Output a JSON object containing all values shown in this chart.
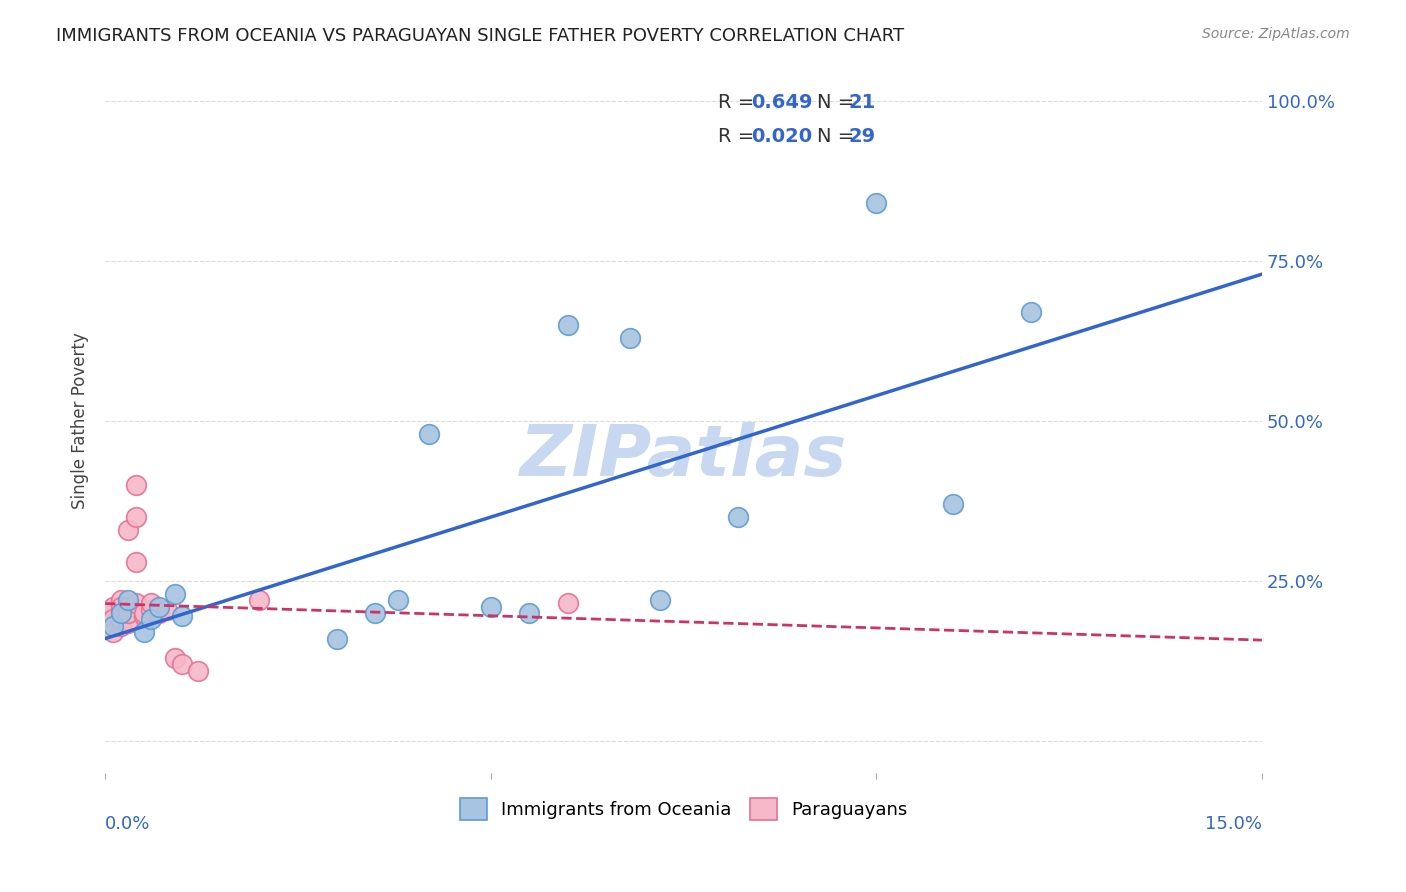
{
  "title": "IMMIGRANTS FROM OCEANIA VS PARAGUAYAN SINGLE FATHER POVERTY CORRELATION CHART",
  "source": "Source: ZipAtlas.com",
  "ylabel": "Single Father Poverty",
  "y_ticks": [
    0.0,
    0.25,
    0.5,
    0.75,
    1.0
  ],
  "y_tick_labels": [
    "",
    "25.0%",
    "50.0%",
    "75.0%",
    "100.0%"
  ],
  "x_range": [
    0.0,
    0.15
  ],
  "y_range": [
    -0.05,
    1.05
  ],
  "legend_blue_r": "0.649",
  "legend_blue_n": "21",
  "legend_pink_r": "0.020",
  "legend_pink_n": "29",
  "legend_label_blue": "Immigrants from Oceania",
  "legend_label_pink": "Paraguayans",
  "blue_scatter_x": [
    0.001,
    0.002,
    0.003,
    0.005,
    0.006,
    0.007,
    0.009,
    0.01,
    0.03,
    0.035,
    0.038,
    0.042,
    0.05,
    0.055,
    0.06,
    0.068,
    0.072,
    0.082,
    0.1,
    0.11,
    0.12
  ],
  "blue_scatter_y": [
    0.18,
    0.2,
    0.22,
    0.17,
    0.19,
    0.21,
    0.23,
    0.195,
    0.16,
    0.2,
    0.22,
    0.48,
    0.21,
    0.2,
    0.65,
    0.63,
    0.22,
    0.35,
    0.84,
    0.37,
    0.67
  ],
  "pink_scatter_x": [
    0.0,
    0.001,
    0.001,
    0.001,
    0.002,
    0.002,
    0.002,
    0.002,
    0.002,
    0.003,
    0.003,
    0.003,
    0.003,
    0.003,
    0.004,
    0.004,
    0.004,
    0.004,
    0.005,
    0.005,
    0.006,
    0.006,
    0.007,
    0.008,
    0.009,
    0.01,
    0.012,
    0.02,
    0.06
  ],
  "pink_scatter_y": [
    0.2,
    0.21,
    0.19,
    0.17,
    0.22,
    0.18,
    0.2,
    0.19,
    0.21,
    0.2,
    0.185,
    0.21,
    0.2,
    0.33,
    0.4,
    0.35,
    0.28,
    0.215,
    0.195,
    0.2,
    0.205,
    0.215,
    0.2,
    0.205,
    0.13,
    0.12,
    0.11,
    0.22,
    0.215
  ],
  "blue_color": "#a8c4e0",
  "blue_edge_color": "#5b9bd5",
  "pink_color": "#f4b8c8",
  "pink_edge_color": "#e87090",
  "blue_line_color": "#3366cc",
  "pink_line_color": "#cc3366",
  "watermark_text": "ZIPatlas",
  "watermark_color": "#c8d8f0",
  "background_color": "#ffffff",
  "grid_color": "#dddddd"
}
